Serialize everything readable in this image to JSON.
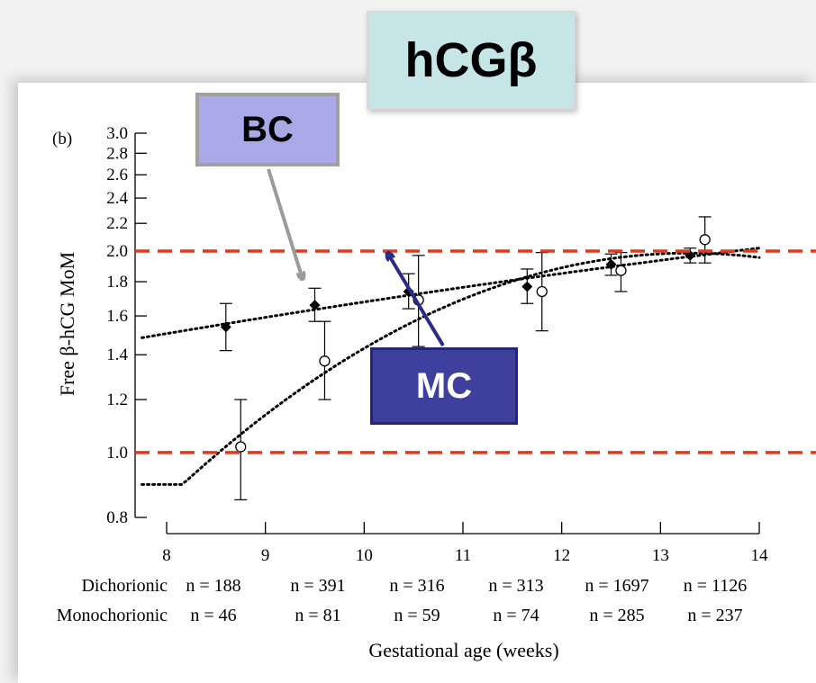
{
  "title": "hCGβ",
  "callouts": {
    "bc": "BC",
    "mc": "MC"
  },
  "chart_data": {
    "type": "scatter",
    "panel_label": "(b)",
    "xlabel": "Gestational age (weeks)",
    "ylabel": "Free β-hCG MoM",
    "xlim": [
      8,
      14
    ],
    "ylim": [
      0.8,
      3.0
    ],
    "y_scale": "log",
    "x_ticks": [
      "8",
      "9",
      "10",
      "11",
      "12",
      "13",
      "14"
    ],
    "y_ticks": [
      "0.8",
      "1.0",
      "1.2",
      "1.4",
      "1.6",
      "1.8",
      "2.0",
      "2.2",
      "2.4",
      "2.6",
      "2.8",
      "3.0"
    ],
    "series": [
      {
        "marker": "filled-diamond",
        "x": [
          8.6,
          9.5,
          10.45,
          11.65,
          12.5,
          13.3
        ],
        "y": [
          1.54,
          1.66,
          1.74,
          1.77,
          1.91,
          1.97
        ],
        "y_low": [
          1.42,
          1.57,
          1.64,
          1.67,
          1.84,
          1.92
        ],
        "y_high": [
          1.67,
          1.76,
          1.85,
          1.88,
          1.98,
          2.02
        ],
        "trend": "dotted"
      },
      {
        "marker": "open-circle",
        "x": [
          8.75,
          9.6,
          10.55,
          11.8,
          12.6,
          13.45
        ],
        "y": [
          1.02,
          1.37,
          1.69,
          1.74,
          1.87,
          2.08
        ],
        "y_low": [
          0.85,
          1.2,
          1.44,
          1.52,
          1.74,
          1.92
        ],
        "y_high": [
          1.2,
          1.57,
          1.97,
          1.99,
          1.99,
          2.25
        ],
        "trend": "dotted"
      }
    ],
    "reference_lines": [
      {
        "y": 2.0,
        "style": "dashed",
        "color": "#e03a1e"
      },
      {
        "y": 1.0,
        "style": "dashed",
        "color": "#e03a1e"
      }
    ],
    "counts": [
      {
        "label": "Dichorionic",
        "values": [
          "n = 188",
          "n = 391",
          "n = 316",
          "n = 313",
          "n = 1697",
          "n = 1126"
        ]
      },
      {
        "label": "Monochorionic",
        "values": [
          "n = 46",
          "n = 81",
          "n = 59",
          "n = 74",
          "n = 285",
          "n = 237"
        ]
      }
    ]
  }
}
